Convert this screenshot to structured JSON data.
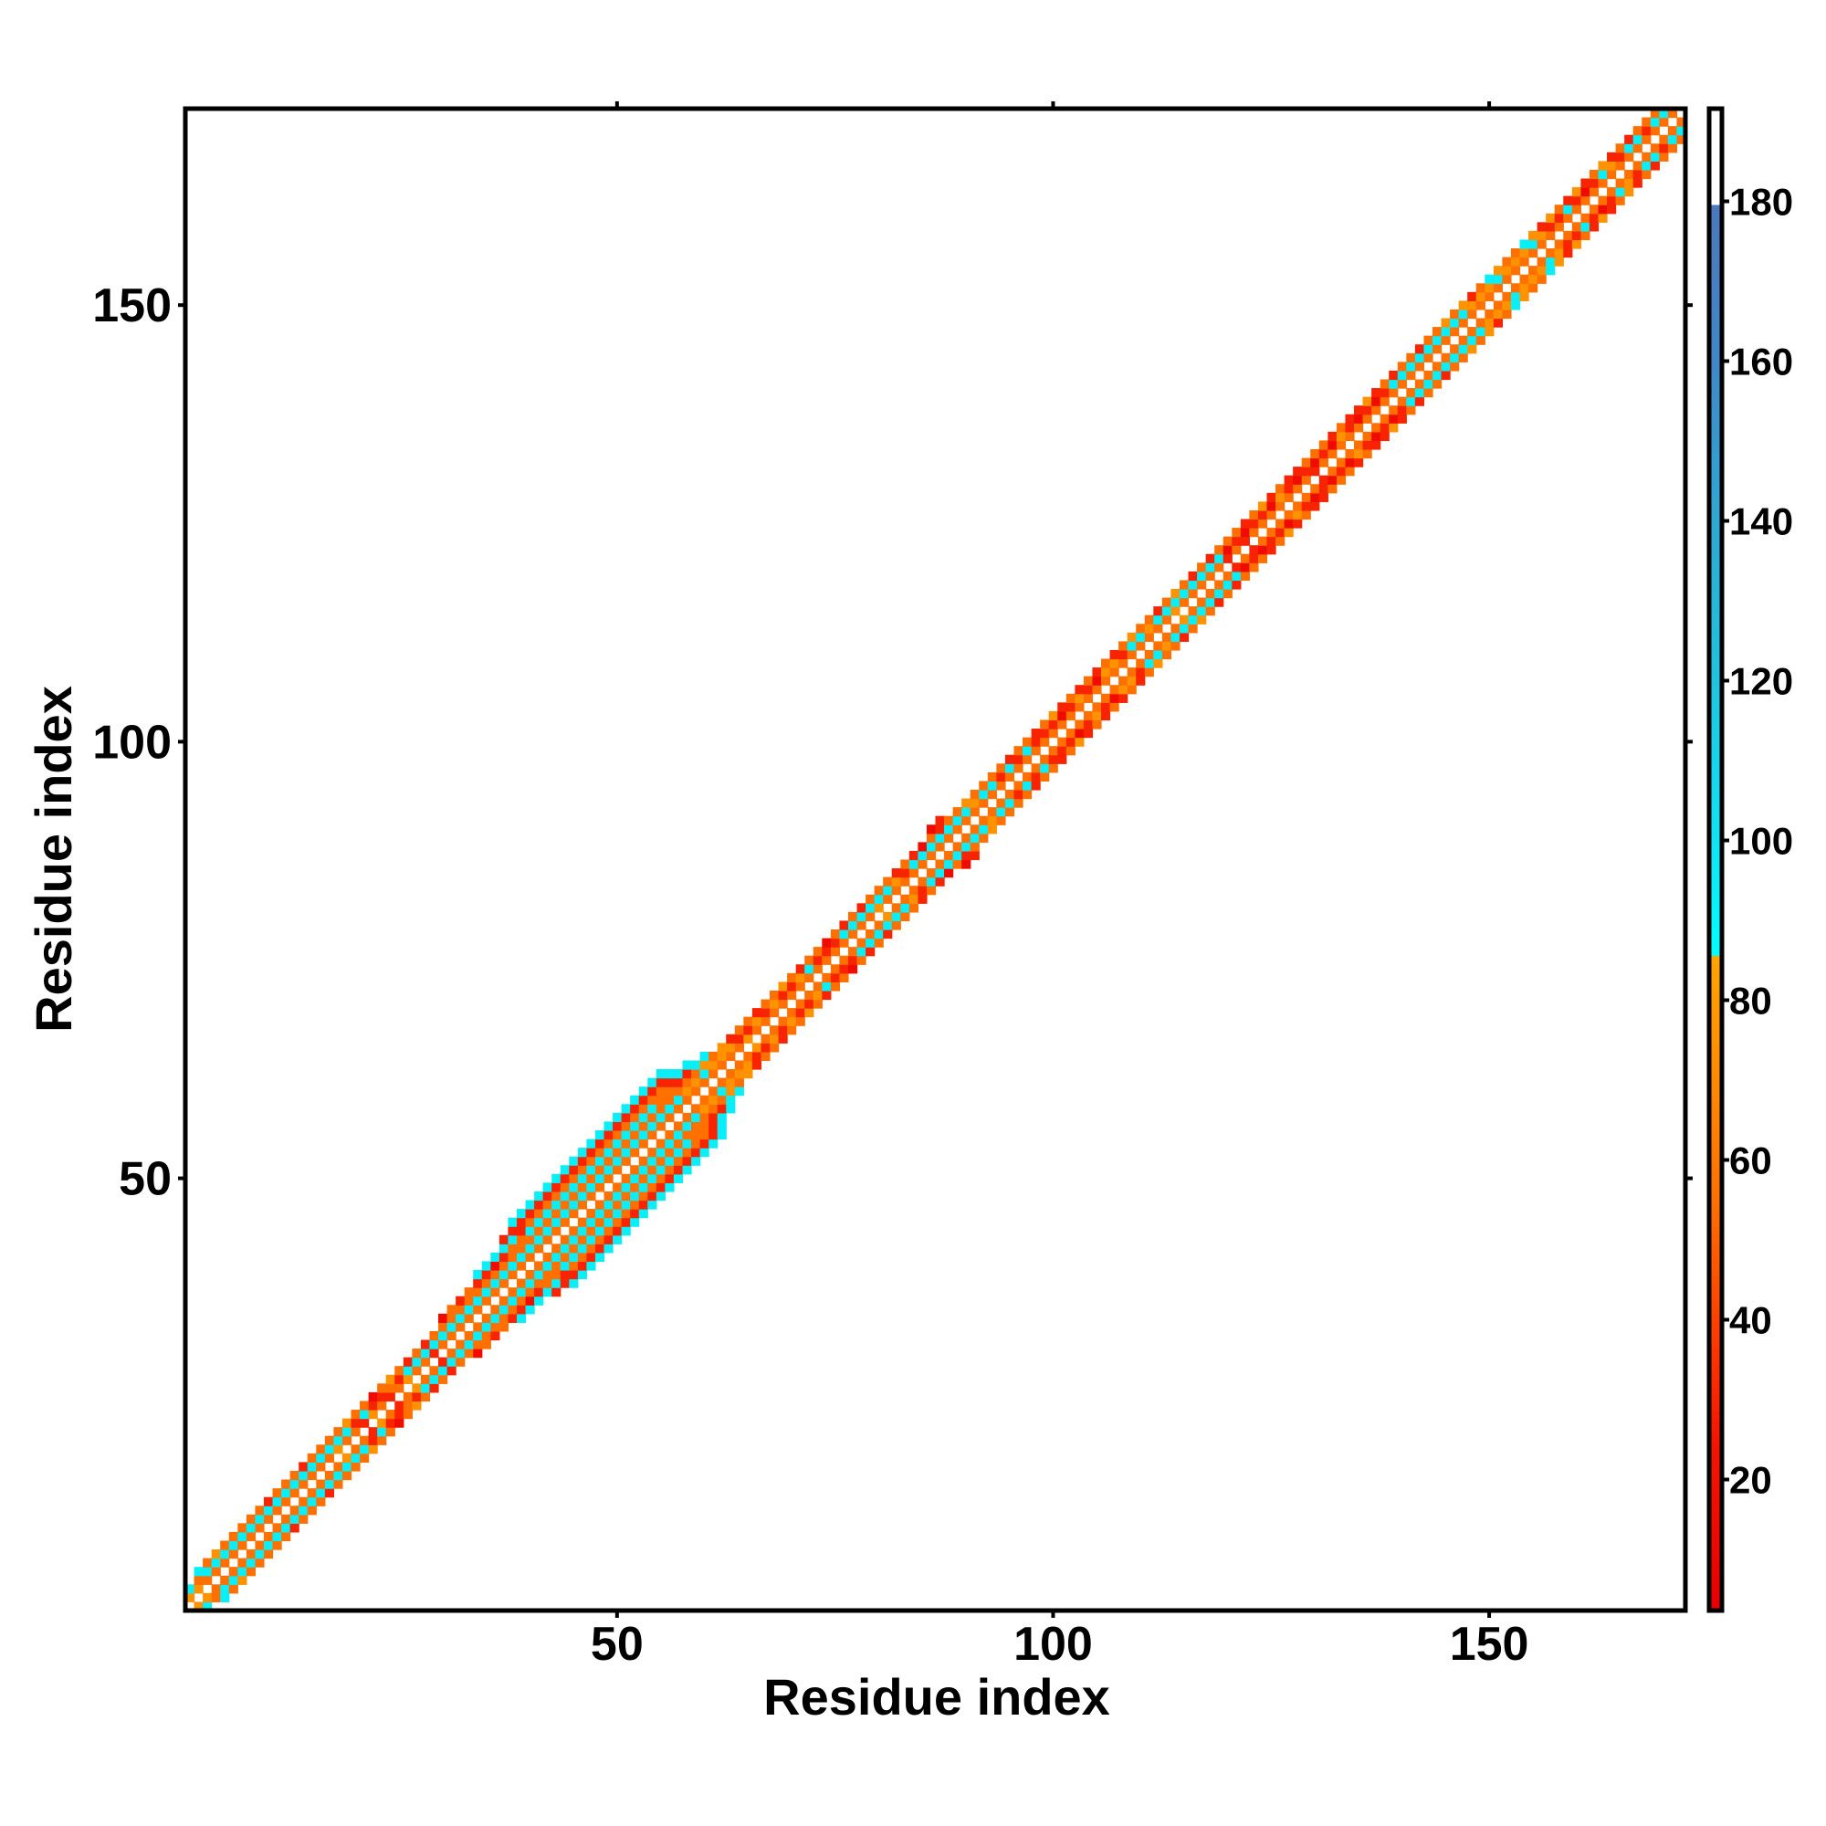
{
  "chart_data": {
    "type": "heatmap",
    "title": "",
    "xlabel": "Residue index",
    "ylabel": "Residue index",
    "xlim": [
      0.5,
      172.5
    ],
    "ylim": [
      0.5,
      172.5
    ],
    "xticks": [
      50,
      100,
      150
    ],
    "yticks": [
      50,
      100,
      150
    ],
    "grid": false,
    "colorbar": {
      "range": [
        3.6,
        191.6
      ],
      "ticks": [
        20,
        40,
        60,
        80,
        100,
        120,
        140,
        160,
        180
      ],
      "stops": [
        {
          "value": 3.6,
          "color": "#e80000"
        },
        {
          "value": 25,
          "color": "#f51500"
        },
        {
          "value": 40,
          "color": "#ff4000"
        },
        {
          "value": 55,
          "color": "#ff7000"
        },
        {
          "value": 70,
          "color": "#ff8a00"
        },
        {
          "value": 85.9,
          "color": "#ffa500"
        },
        {
          "value": 86,
          "color": "#00ffff"
        },
        {
          "value": 100,
          "color": "#10e4f4"
        },
        {
          "value": 120,
          "color": "#20c4e0"
        },
        {
          "value": 140,
          "color": "#30a8d4"
        },
        {
          "value": 160,
          "color": "#4088c8"
        },
        {
          "value": 179.9,
          "color": "#4c78bc"
        },
        {
          "value": 180,
          "color": "#ffffff"
        }
      ]
    },
    "code_values": {
      "R": 15,
      "r": 30,
      "o": 55,
      "y": 75,
      "c": 95,
      "b": 120
    },
    "band_rows_note_format": "row i, char k = value code at |i-j| = k (symmetric)",
    "band_rows": [
      "yc",
      "yoc",
      "oco",
      "ocy",
      "oco",
      "oco",
      "oco",
      "oco",
      "oco",
      "ocr",
      "oco",
      "oco",
      "oco",
      "ocr",
      "oco",
      "oco",
      "oco",
      "yco",
      "ocy",
      "oro",
      "rco",
      "yrR",
      "oro",
      "roy",
      "oro",
      "ycr",
      "oco",
      "ocr",
      "rco",
      "ocoR",
      "ocoo",
      "ocor",
      "ocoo",
      "ocorc",
      "ocorc",
      "ocoRc",
      "ocorcr",
      "ocoocrc",
      "ocoorrc",
      "ococorc",
      "ococorc",
      "ococorc",
      "ococorc",
      "ococorc",
      "ococorc",
      "ococorc",
      "ococorc",
      "ococorc",
      "ococorc",
      "ococorc",
      "ococorc",
      "ococorc",
      "ococorc",
      "ococorc",
      "ocooorc",
      "ocoorc",
      "ocorc",
      "oyorc",
      "oyoc",
      "ocyc",
      "oyo",
      "oyy",
      "oyr",
      "oro",
      "yro",
      "oyr",
      "oro",
      "oyo",
      "ory",
      "oro",
      "oyr",
      "oco",
      "oro",
      "orR",
      "oro",
      "ocr",
      "oco",
      "ocr",
      "oco",
      "yco",
      "oco",
      "oyr",
      "oro",
      "ocr",
      "ocR",
      "ocoR",
      "ocrr",
      "oco",
      "oco",
      "ocy",
      "oyo",
      "oco",
      "oco",
      "oro",
      "ocr",
      "oro",
      "oco",
      "orr",
      "oro",
      "ory",
      "oRr",
      "oro",
      "oyr",
      "oro",
      "oRr",
      "oyo",
      "oyr",
      "oro",
      "ocy",
      "oco",
      "oyo",
      "ocr",
      "oco",
      "ycy",
      "oco",
      "ocr",
      "oco",
      "ocr",
      "oco",
      "rRo",
      "oro",
      "rRr",
      "oro",
      "ory",
      "oRr",
      "oyo",
      "orr",
      "oRr",
      "oro",
      "rRo",
      "oro",
      "oRr",
      "oyo",
      "orr",
      "oRr",
      "ory",
      "oRr",
      "oro",
      "ocr",
      "oco",
      "oco",
      "ocr",
      "oco",
      "oco",
      "ocy",
      "oco",
      "ocy",
      "oyr",
      "oyo",
      "oyc",
      "ocy",
      "oyo",
      "oyo",
      "oyc",
      "ocy",
      "oyr",
      "ory",
      "oro",
      "ocr",
      "ory",
      "oRr",
      "oro",
      "ocy",
      "oyr",
      "oro",
      "ocr",
      "oco",
      "oro",
      "oco",
      "oc",
      "o",
      ""
    ]
  }
}
